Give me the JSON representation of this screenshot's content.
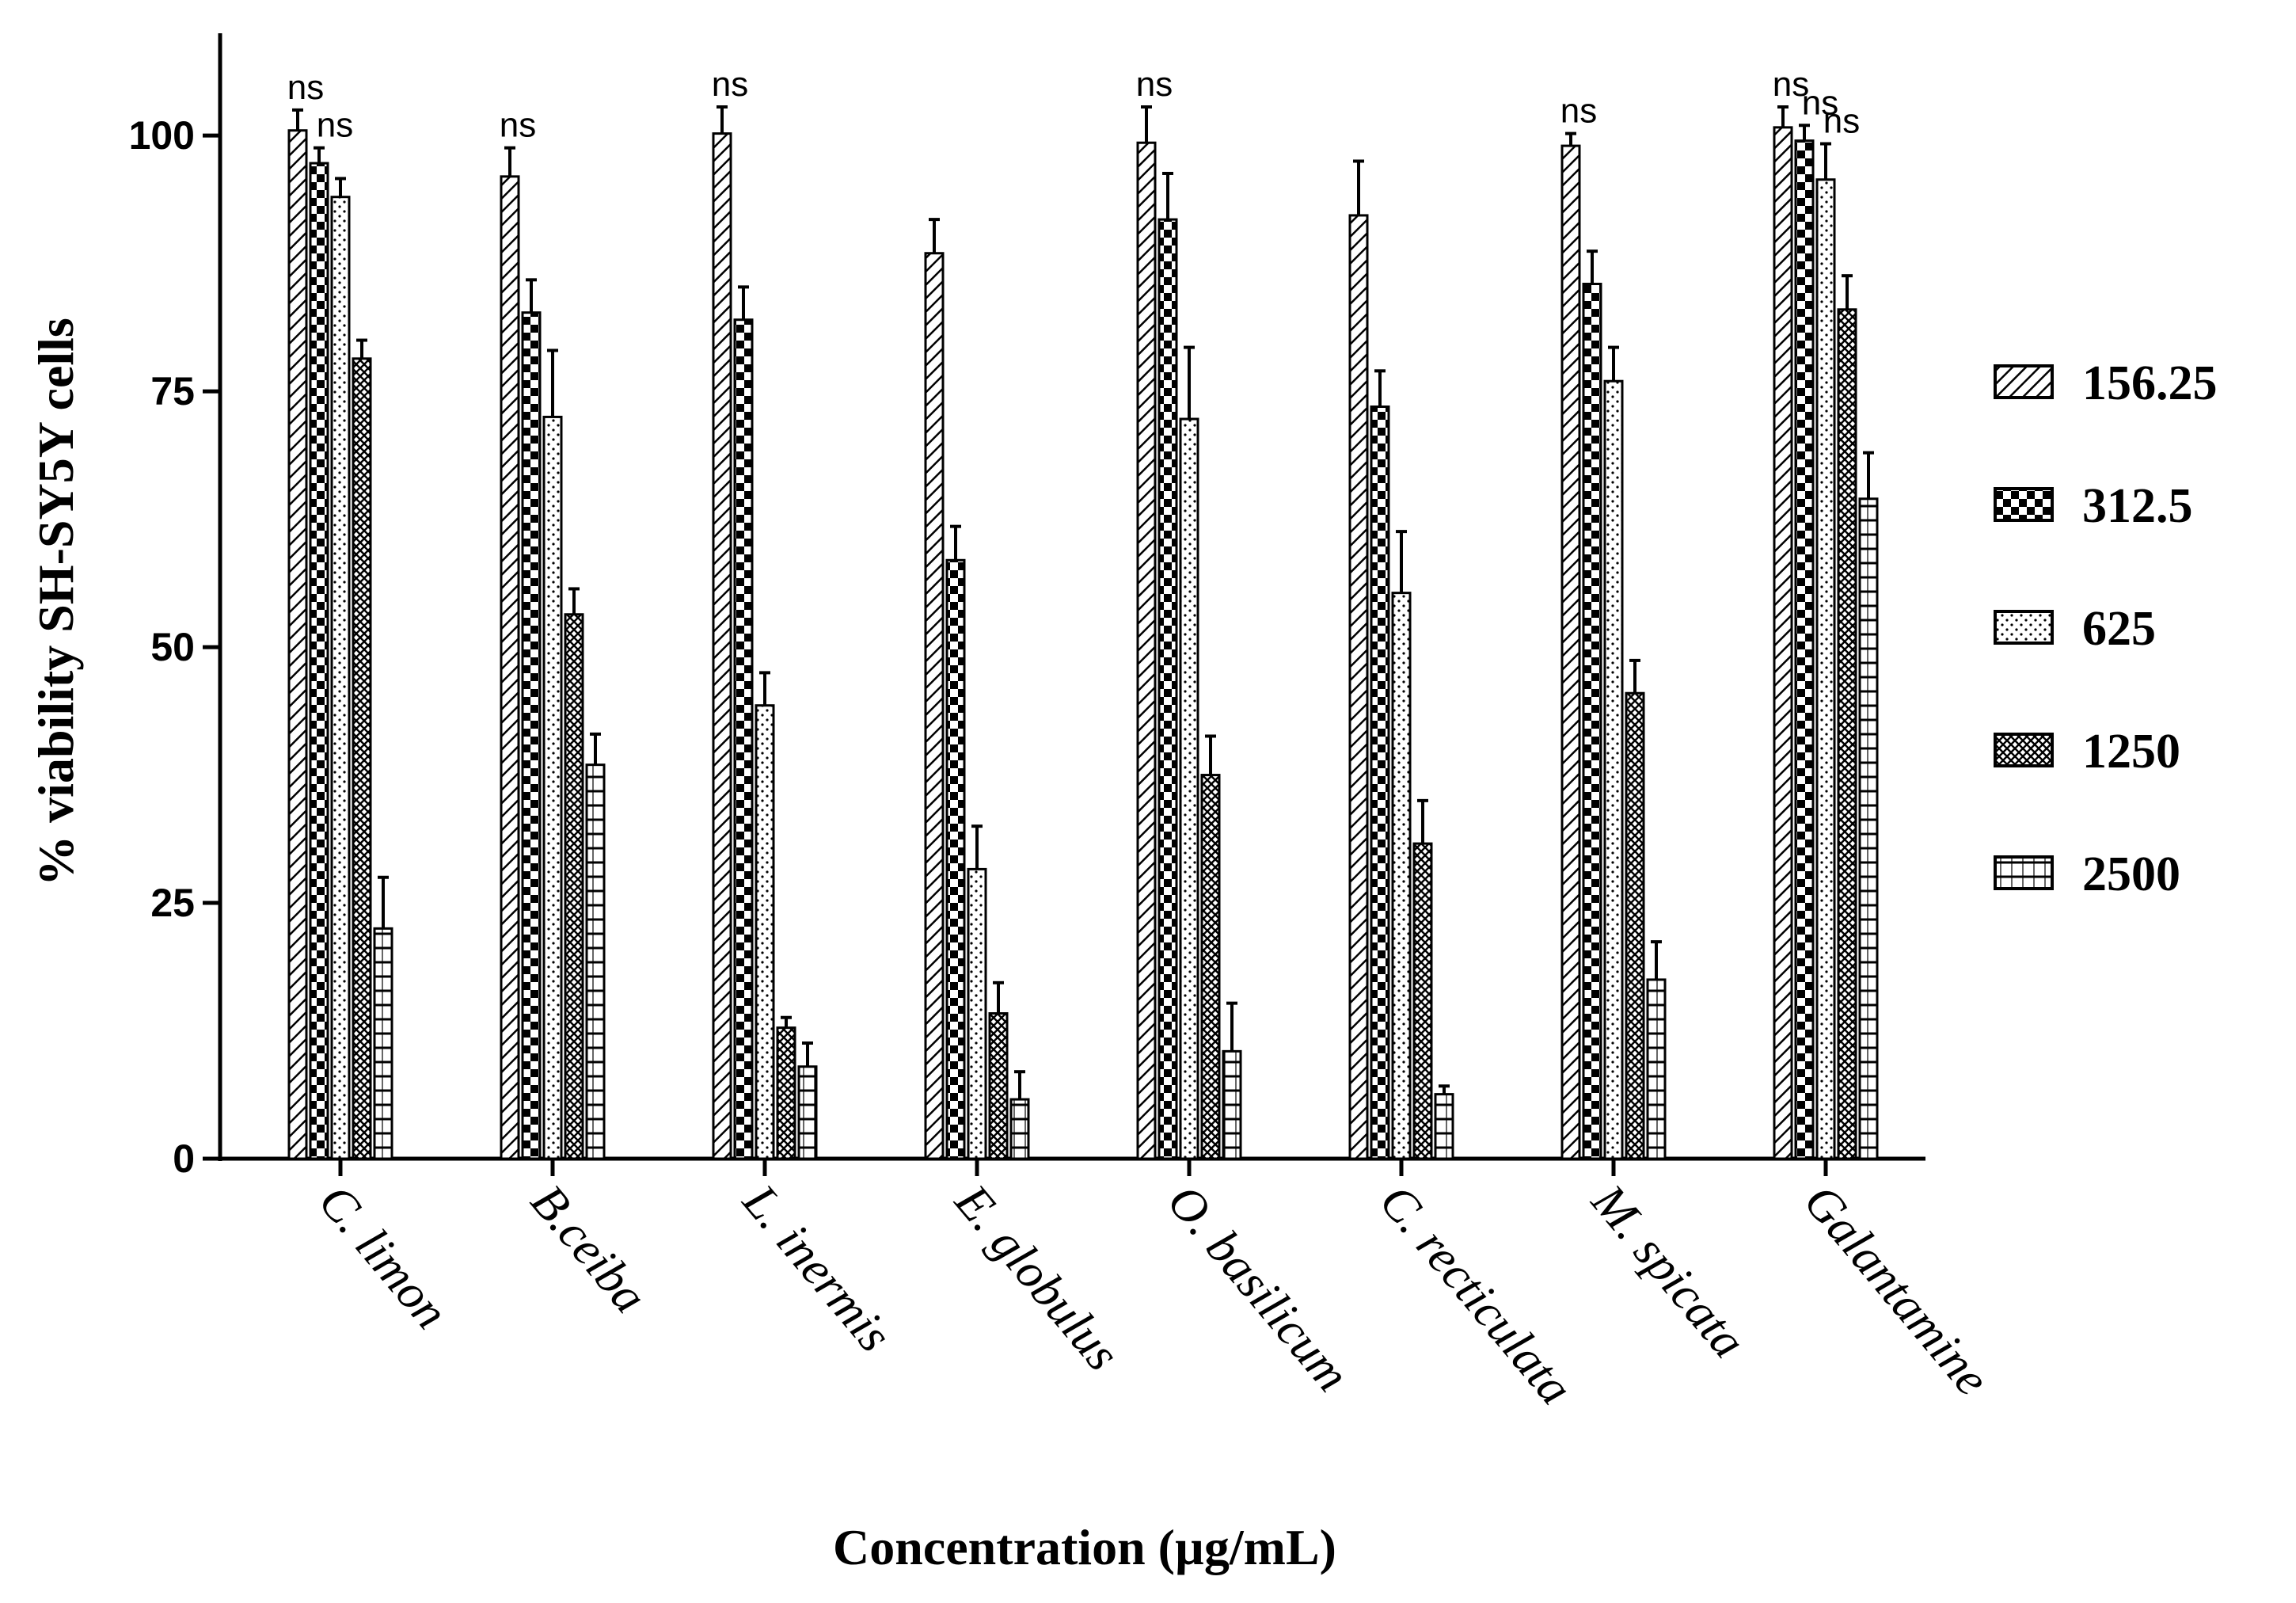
{
  "chart_data": {
    "type": "bar",
    "xlabel": "Concentration (µg/mL)",
    "ylabel": "% viability SH-SY5Y cells",
    "ylim": [
      0,
      110
    ],
    "yticks": [
      "0",
      "25",
      "50",
      "75",
      "100"
    ],
    "ytick_values": [
      0,
      25,
      50,
      75,
      100
    ],
    "legend_position": "right",
    "categories": [
      "C. limon",
      "B.ceiba",
      "L. inermis",
      "E. globulus",
      "O. basilicum",
      "C. recticulata",
      "M. spicata",
      "Galantamine"
    ],
    "series": [
      {
        "name": "156.25",
        "pattern": "diagonal",
        "values": [
          100.5,
          96,
          100.2,
          88.5,
          99.3,
          92.2,
          99,
          100.8
        ],
        "errors": [
          2,
          2.8,
          2.6,
          3.3,
          3.5,
          5.3,
          1.2,
          2
        ]
      },
      {
        "name": "312.5",
        "pattern": "checker",
        "values": [
          97.3,
          82.7,
          82,
          58.5,
          91.8,
          73.5,
          85.5,
          99.5
        ],
        "errors": [
          1.5,
          3.2,
          3.2,
          3.3,
          4.5,
          3.5,
          3.2,
          1.5
        ]
      },
      {
        "name": "625",
        "pattern": "dots",
        "values": [
          94,
          72.5,
          44.3,
          28.3,
          72.3,
          55.3,
          76,
          95.7
        ],
        "errors": [
          1.8,
          6.5,
          3.2,
          4.2,
          7,
          6,
          3.3,
          3.5
        ]
      },
      {
        "name": "1250",
        "pattern": "crosshatch",
        "values": [
          78.2,
          53.2,
          12.8,
          14.2,
          37.5,
          30.8,
          45.5,
          83
        ],
        "errors": [
          1.8,
          2.5,
          1,
          3,
          3.8,
          4.2,
          3.2,
          3.3
        ]
      },
      {
        "name": "2500",
        "pattern": "hlines",
        "values": [
          22.5,
          38.5,
          9,
          5.8,
          10.5,
          6.3,
          17.5,
          64.5
        ],
        "errors": [
          5,
          3,
          2.3,
          2.7,
          4.7,
          0.8,
          3.7,
          4.5
        ]
      }
    ],
    "annotations": [
      {
        "text": "ns",
        "category": 0,
        "series": 0
      },
      {
        "text": "ns",
        "category": 0,
        "series": 1
      },
      {
        "text": "ns",
        "category": 1,
        "series": 0
      },
      {
        "text": "ns",
        "category": 2,
        "series": 0
      },
      {
        "text": "ns",
        "category": 4,
        "series": 0
      },
      {
        "text": "ns",
        "category": 6,
        "series": 0
      },
      {
        "text": "ns",
        "category": 7,
        "series": 0
      },
      {
        "text": "ns",
        "category": 7,
        "series": 1
      },
      {
        "text": "ns",
        "category": 7,
        "series": 2
      }
    ]
  }
}
